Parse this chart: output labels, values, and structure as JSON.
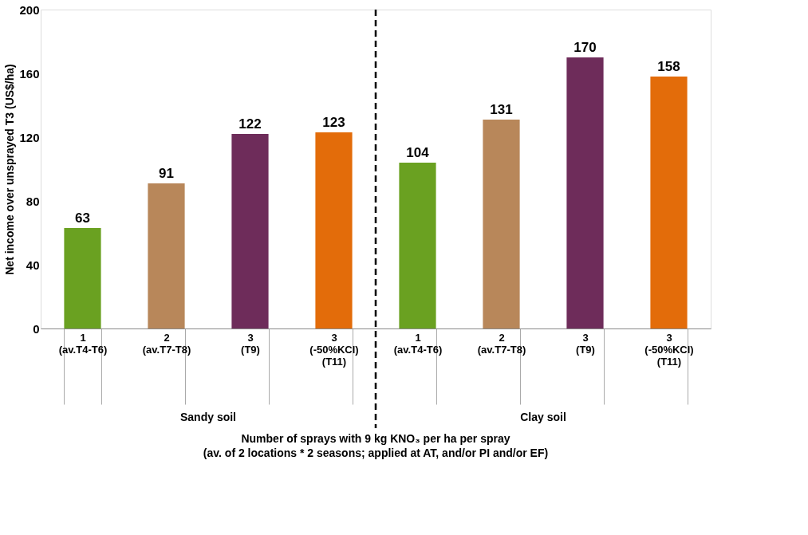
{
  "chart_data": {
    "type": "bar",
    "categories": [
      "1\n(av.T4-T6)",
      "2\n(av.T7-T8)",
      "3\n(T9)",
      "3\n(-50%KCl)\n(T11)",
      "1\n(av.T4-T6)",
      "2\n(av.T7-T8)",
      "3\n(T9)",
      "3\n(-50%KCl)\n(T11)"
    ],
    "values": [
      63,
      91,
      122,
      123,
      104,
      131,
      170,
      158
    ],
    "colors": [
      "#6aa121",
      "#b8875a",
      "#6e2c5a",
      "#e36c0a",
      "#6aa121",
      "#b8875a",
      "#6e2c5a",
      "#e36c0a"
    ],
    "data_labels": true,
    "ylabel": "Net income over unsprayed T3 (US$/ha)",
    "ylim": [
      0,
      200
    ],
    "yticks": [
      0,
      40,
      80,
      120,
      160,
      200
    ],
    "grid": false,
    "annotations": [
      "Sandy soil",
      "Clay soil",
      "Number of sprays with 9 kg KNO₃ per ha per spray\n(av. of 2 locations * 2 seasons; applied at AT, and/or PI and/or EF)"
    ]
  }
}
